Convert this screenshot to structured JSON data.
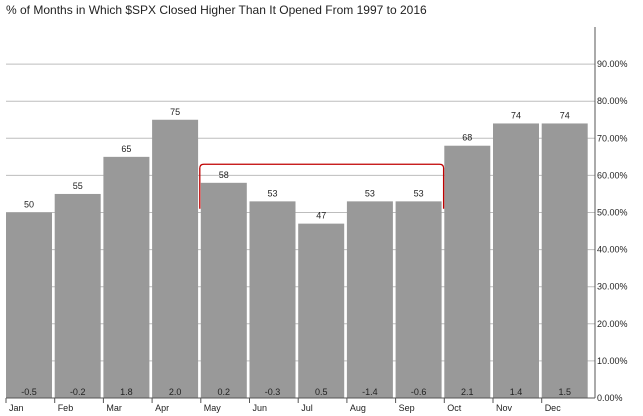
{
  "chart_data": {
    "type": "bar",
    "title": "% of Months in Which $SPX Closed Higher Than It Opened From 1997 to 2016",
    "categories": [
      "Jan",
      "Feb",
      "Mar",
      "Apr",
      "May",
      "Jun",
      "Jul",
      "Aug",
      "Sep",
      "Oct",
      "Nov",
      "Dec"
    ],
    "values": [
      50,
      55,
      65,
      75,
      58,
      53,
      47,
      53,
      53,
      68,
      74,
      74
    ],
    "value_labels": [
      "50",
      "55",
      "65",
      "75",
      "58",
      "53",
      "47",
      "53",
      "53",
      "68",
      "74",
      "74"
    ],
    "secondary_labels": [
      "-0.5",
      "-0.2",
      "1.8",
      "2.0",
      "0.2",
      "-0.3",
      "0.5",
      "-1.4",
      "-0.6",
      "2.1",
      "1.4",
      "1.5"
    ],
    "y_ticks": [
      "0.00%",
      "10.00%",
      "20.00%",
      "30.00%",
      "40.00%",
      "50.00%",
      "60.00%",
      "70.00%",
      "80.00%",
      "90.00%"
    ],
    "ylim": [
      0,
      100
    ],
    "xlabel": "",
    "ylabel": "",
    "grid": true,
    "y_axis_position": "right",
    "highlight_range": [
      "May",
      "Sep"
    ],
    "colors": {
      "bar": "#999999",
      "grid": "#bdbdbd",
      "axis": "#555555",
      "highlight": "#c00000"
    }
  }
}
